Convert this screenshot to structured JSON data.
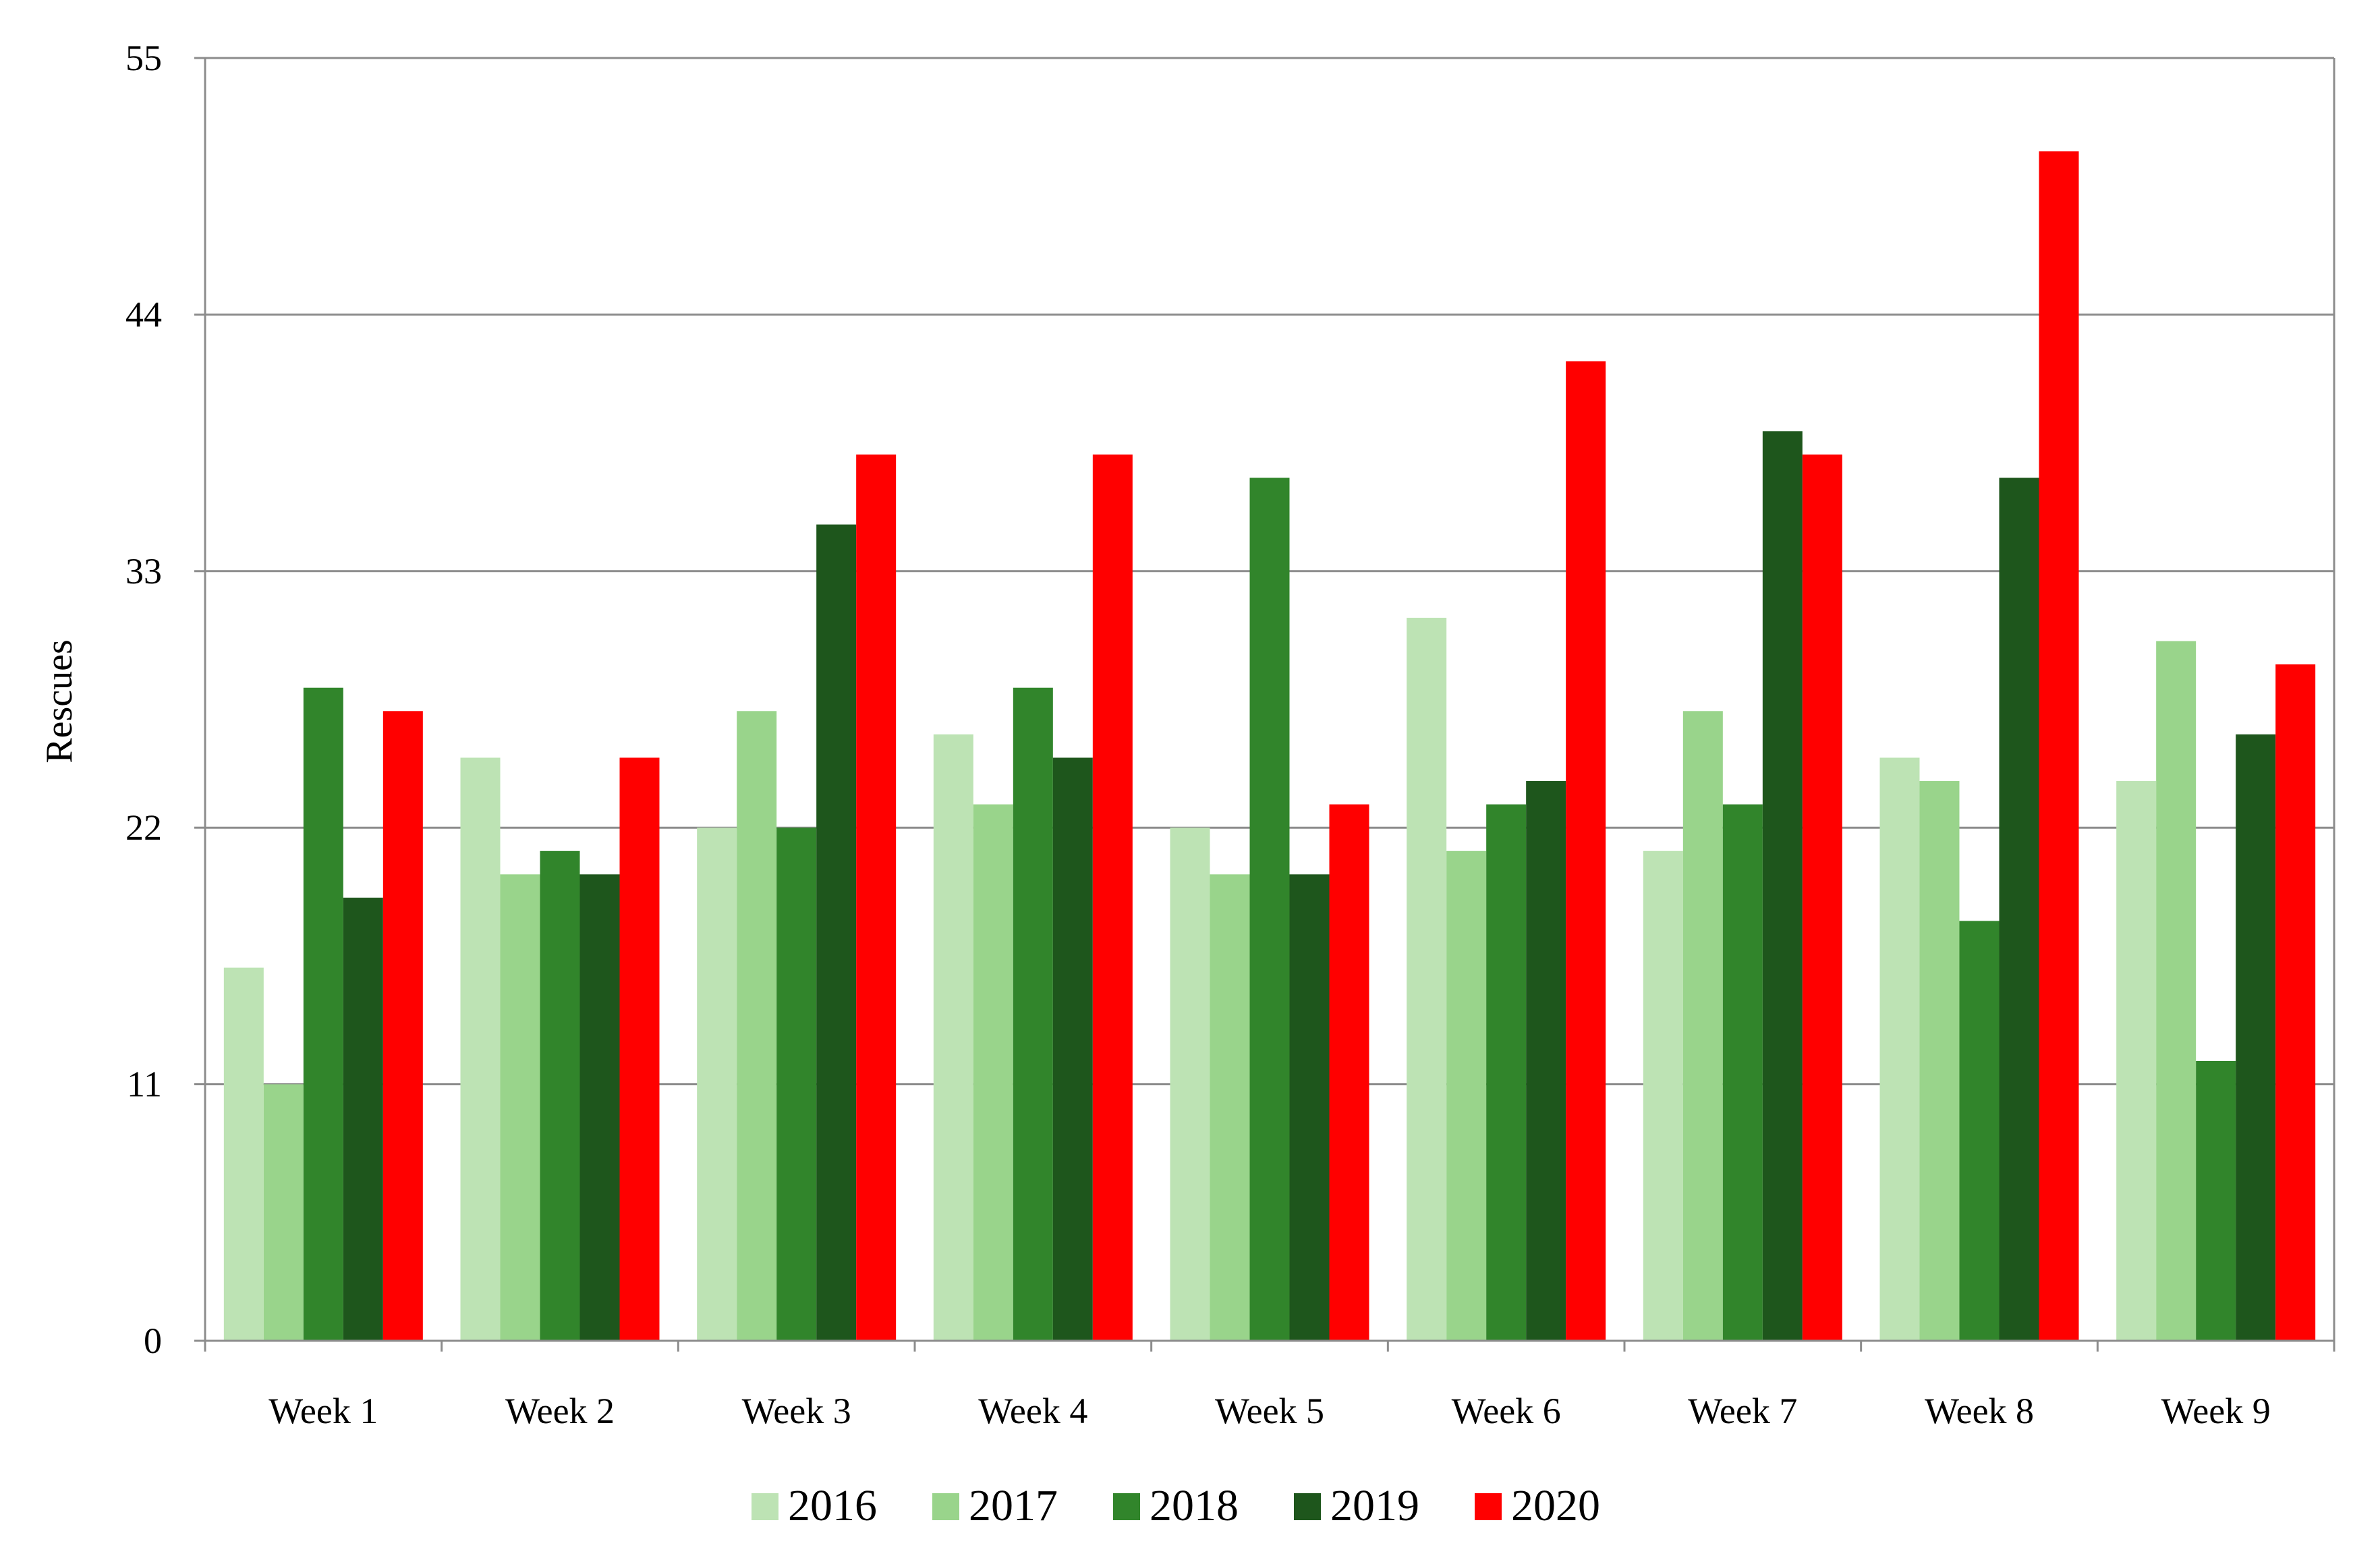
{
  "chart_data": {
    "type": "bar",
    "title": "",
    "xlabel": "",
    "ylabel": "Rescues",
    "ylim": [
      0,
      55
    ],
    "yticks": [
      0,
      11,
      22,
      33,
      44,
      55
    ],
    "grid": true,
    "legend_position": "bottom",
    "categories": [
      "Week 1",
      "Week 2",
      "Week 3",
      "Week 4",
      "Week 5",
      "Week 6",
      "Week 7",
      "Week 8",
      "Week 9"
    ],
    "series": [
      {
        "name": "2016",
        "color": "#bde3b4",
        "values": [
          16,
          25,
          22,
          26,
          22,
          31,
          21,
          25,
          24
        ]
      },
      {
        "name": "2017",
        "color": "#99d48b",
        "values": [
          11,
          20,
          27,
          23,
          20,
          21,
          27,
          24,
          30
        ]
      },
      {
        "name": "2018",
        "color": "#31852b",
        "values": [
          28,
          21,
          22,
          28,
          37,
          23,
          23,
          18,
          12
        ]
      },
      {
        "name": "2019",
        "color": "#1e561c",
        "values": [
          19,
          20,
          35,
          25,
          20,
          24,
          39,
          37,
          26
        ]
      },
      {
        "name": "2020",
        "color": "#ff0000",
        "values": [
          27,
          25,
          38,
          38,
          23,
          42,
          38,
          51,
          29
        ]
      }
    ]
  }
}
